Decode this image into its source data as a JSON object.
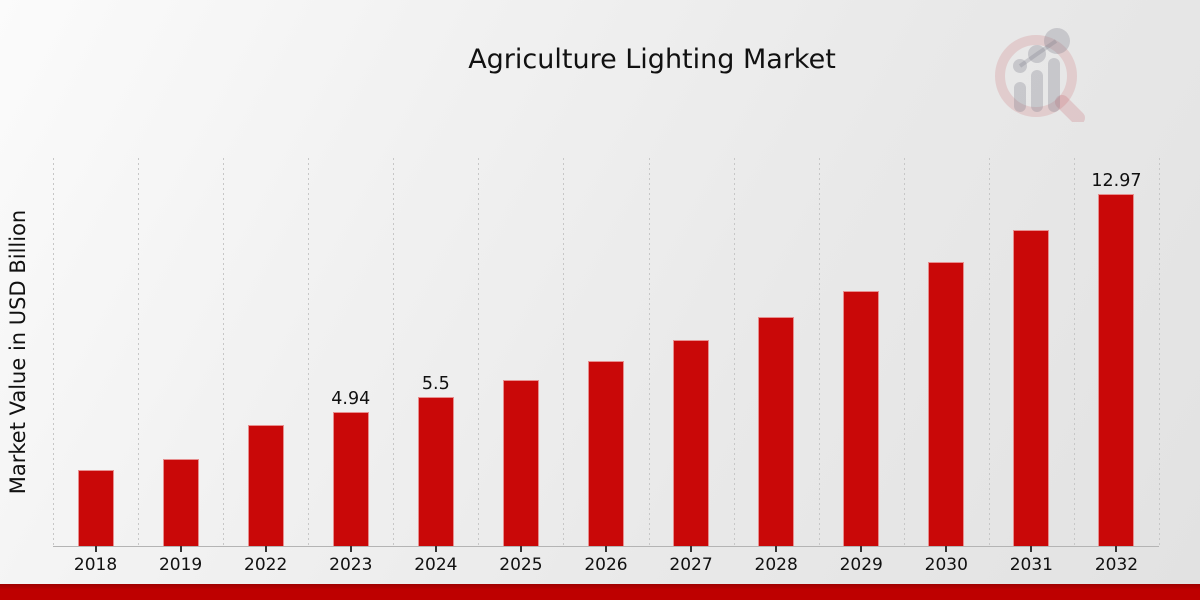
{
  "title": "Agriculture Lighting Market",
  "chart_data": {
    "type": "bar",
    "categories": [
      "2018",
      "2019",
      "2022",
      "2023",
      "2024",
      "2025",
      "2026",
      "2027",
      "2028",
      "2029",
      "2030",
      "2031",
      "2032"
    ],
    "values": [
      2.8,
      3.22,
      4.45,
      4.94,
      5.5,
      6.12,
      6.81,
      7.58,
      8.44,
      9.39,
      10.46,
      11.64,
      12.97
    ],
    "bar_labels": [
      "",
      "",
      "",
      "4.94",
      "5.5",
      "",
      "",
      "",
      "",
      "",
      "",
      "",
      "12.97"
    ],
    "title": "Agriculture Lighting Market",
    "xlabel": "",
    "ylabel": "Market Value in USD Billion",
    "ylim": [
      0,
      14.3
    ],
    "bar_color": "#C90808",
    "grid": "vertical-dotted",
    "gridline_color": "#c7c7c7",
    "legend": "none"
  },
  "footer": {
    "accent_color": "#BE0000",
    "accent_color_dark": "#9E0000"
  },
  "watermark": {
    "icon": "magnifier-bar-chart-logo",
    "ring_color": "rgba(190,60,70,0.16)",
    "bars_color": "rgba(125,125,138,0.30)"
  }
}
